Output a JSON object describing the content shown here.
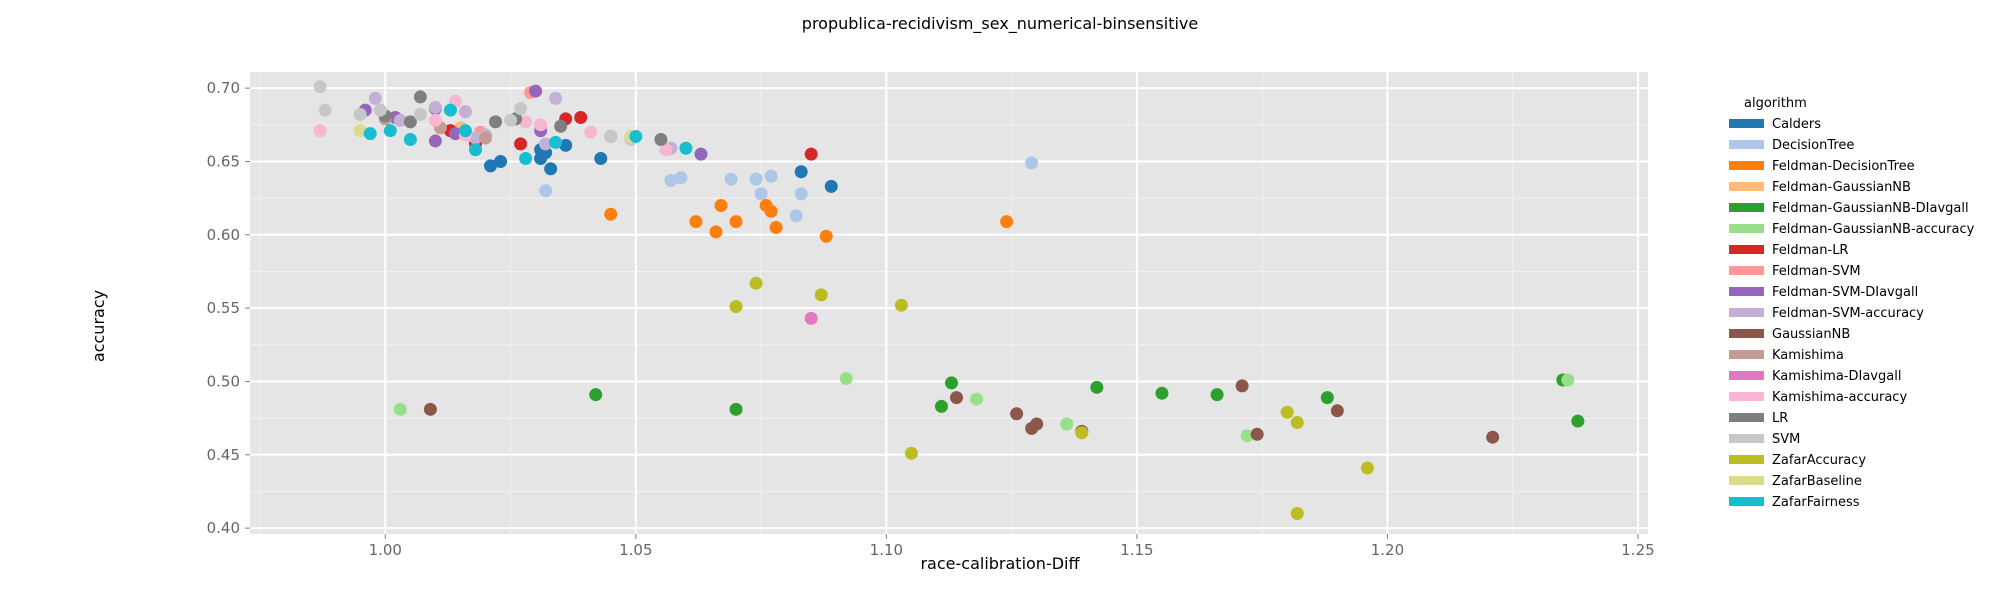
{
  "chart_data": {
    "type": "scatter",
    "title": "propublica-recidivism_sex_numerical-binsensitive",
    "xlabel": "race-calibration-Diff",
    "ylabel": "accuracy",
    "xlim": [
      0.973,
      1.252
    ],
    "ylim": [
      0.396,
      0.711
    ],
    "xticks": [
      1.0,
      1.05,
      1.1,
      1.15,
      1.2,
      1.25
    ],
    "xtick_labels": [
      "1.00",
      "1.05",
      "1.10",
      "1.15",
      "1.20",
      "1.25"
    ],
    "yticks": [
      0.4,
      0.45,
      0.5,
      0.55,
      0.6,
      0.65,
      0.7
    ],
    "ytick_labels": [
      "0.40",
      "0.45",
      "0.50",
      "0.55",
      "0.60",
      "0.65",
      "0.70"
    ],
    "grid": true,
    "legend_title": "algorithm",
    "legend_position": "right",
    "series": [
      {
        "name": "Calders",
        "color": "#1f77b4",
        "points": [
          [
            1.021,
            0.647
          ],
          [
            1.023,
            0.65
          ],
          [
            1.031,
            0.652
          ],
          [
            1.031,
            0.658
          ],
          [
            1.032,
            0.656
          ],
          [
            1.033,
            0.645
          ],
          [
            1.036,
            0.661
          ],
          [
            1.043,
            0.652
          ],
          [
            1.083,
            0.643
          ],
          [
            1.089,
            0.633
          ]
        ]
      },
      {
        "name": "DecisionTree",
        "color": "#aec7e8",
        "points": [
          [
            1.032,
            0.63
          ],
          [
            1.057,
            0.637
          ],
          [
            1.059,
            0.639
          ],
          [
            1.069,
            0.638
          ],
          [
            1.074,
            0.638
          ],
          [
            1.075,
            0.628
          ],
          [
            1.077,
            0.64
          ],
          [
            1.082,
            0.613
          ],
          [
            1.083,
            0.628
          ],
          [
            1.129,
            0.649
          ]
        ]
      },
      {
        "name": "Feldman-DecisionTree",
        "color": "#ff7f0e",
        "points": [
          [
            1.045,
            0.614
          ],
          [
            1.062,
            0.609
          ],
          [
            1.066,
            0.602
          ],
          [
            1.067,
            0.62
          ],
          [
            1.07,
            0.609
          ],
          [
            1.076,
            0.62
          ],
          [
            1.077,
            0.616
          ],
          [
            1.078,
            0.605
          ],
          [
            1.088,
            0.599
          ],
          [
            1.124,
            0.609
          ]
        ]
      },
      {
        "name": "Feldman-GaussianNB",
        "color": "#ffbb78",
        "points": [
          [
            1.013,
            0.671
          ],
          [
            1.015,
            0.673
          ]
        ]
      },
      {
        "name": "Feldman-GaussianNB-DIavgall",
        "color": "#2ca02c",
        "points": [
          [
            1.042,
            0.491
          ],
          [
            1.07,
            0.481
          ],
          [
            1.111,
            0.483
          ],
          [
            1.113,
            0.499
          ],
          [
            1.142,
            0.496
          ],
          [
            1.155,
            0.492
          ],
          [
            1.166,
            0.491
          ],
          [
            1.188,
            0.489
          ],
          [
            1.235,
            0.501
          ],
          [
            1.238,
            0.473
          ]
        ]
      },
      {
        "name": "Feldman-GaussianNB-accuracy",
        "color": "#98df8a",
        "points": [
          [
            1.003,
            0.481
          ],
          [
            1.092,
            0.502
          ],
          [
            1.118,
            0.488
          ],
          [
            1.136,
            0.471
          ],
          [
            1.172,
            0.463
          ],
          [
            1.236,
            0.501
          ]
        ]
      },
      {
        "name": "Feldman-LR",
        "color": "#d62728",
        "points": [
          [
            1.013,
            0.671
          ],
          [
            1.018,
            0.662
          ],
          [
            1.027,
            0.662
          ],
          [
            1.036,
            0.679
          ],
          [
            1.039,
            0.68
          ],
          [
            1.085,
            0.655
          ]
        ]
      },
      {
        "name": "Feldman-SVM",
        "color": "#ff9896",
        "points": [
          [
            1.019,
            0.67
          ],
          [
            1.029,
            0.697
          ],
          [
            1.031,
            0.674
          ]
        ]
      },
      {
        "name": "Feldman-SVM-DIavgall",
        "color": "#9467bd",
        "points": [
          [
            0.996,
            0.685
          ],
          [
            1.002,
            0.68
          ],
          [
            1.01,
            0.686
          ],
          [
            1.01,
            0.664
          ],
          [
            1.014,
            0.669
          ],
          [
            1.03,
            0.698
          ],
          [
            1.031,
            0.671
          ],
          [
            1.063,
            0.655
          ]
        ]
      },
      {
        "name": "Feldman-SVM-accuracy",
        "color": "#c5b0d5",
        "points": [
          [
            0.998,
            0.693
          ],
          [
            1.003,
            0.678
          ],
          [
            1.01,
            0.687
          ],
          [
            1.016,
            0.684
          ],
          [
            1.018,
            0.666
          ],
          [
            1.02,
            0.668
          ],
          [
            1.032,
            0.662
          ],
          [
            1.034,
            0.693
          ],
          [
            1.057,
            0.659
          ]
        ]
      },
      {
        "name": "GaussianNB",
        "color": "#8c564b",
        "points": [
          [
            1.009,
            0.481
          ],
          [
            1.114,
            0.489
          ],
          [
            1.126,
            0.478
          ],
          [
            1.129,
            0.468
          ],
          [
            1.13,
            0.471
          ],
          [
            1.139,
            0.466
          ],
          [
            1.171,
            0.497
          ],
          [
            1.174,
            0.464
          ],
          [
            1.19,
            0.48
          ],
          [
            1.221,
            0.462
          ]
        ]
      },
      {
        "name": "Kamishima",
        "color": "#c49c94",
        "points": [
          [
            1.0,
            0.679
          ],
          [
            1.011,
            0.673
          ],
          [
            1.02,
            0.666
          ]
        ]
      },
      {
        "name": "Kamishima-DIavgall",
        "color": "#e377c2",
        "points": [
          [
            1.085,
            0.543
          ]
        ]
      },
      {
        "name": "Kamishima-accuracy",
        "color": "#f7b6d2",
        "points": [
          [
            0.987,
            0.671
          ],
          [
            1.01,
            0.678
          ],
          [
            1.014,
            0.691
          ],
          [
            1.016,
            0.668
          ],
          [
            1.028,
            0.677
          ],
          [
            1.031,
            0.675
          ],
          [
            1.041,
            0.67
          ],
          [
            1.056,
            0.658
          ]
        ]
      },
      {
        "name": "LR",
        "color": "#7f7f7f",
        "points": [
          [
            1.0,
            0.681
          ],
          [
            1.005,
            0.677
          ],
          [
            1.007,
            0.694
          ],
          [
            1.022,
            0.677
          ],
          [
            1.026,
            0.679
          ],
          [
            1.035,
            0.674
          ],
          [
            1.045,
            0.667
          ],
          [
            1.055,
            0.665
          ]
        ]
      },
      {
        "name": "SVM",
        "color": "#c7c7c7",
        "points": [
          [
            0.987,
            0.701
          ],
          [
            0.988,
            0.685
          ],
          [
            0.995,
            0.682
          ],
          [
            0.999,
            0.685
          ],
          [
            1.007,
            0.682
          ],
          [
            1.025,
            0.678
          ],
          [
            1.027,
            0.686
          ],
          [
            1.045,
            0.667
          ],
          [
            1.049,
            0.665
          ]
        ]
      },
      {
        "name": "ZafarAccuracy",
        "color": "#bcbd22",
        "points": [
          [
            1.07,
            0.551
          ],
          [
            1.074,
            0.567
          ],
          [
            1.087,
            0.559
          ],
          [
            1.103,
            0.552
          ],
          [
            1.105,
            0.451
          ],
          [
            1.139,
            0.465
          ],
          [
            1.18,
            0.479
          ],
          [
            1.182,
            0.472
          ],
          [
            1.182,
            0.41
          ],
          [
            1.196,
            0.441
          ]
        ]
      },
      {
        "name": "ZafarBaseline",
        "color": "#dbdb8d",
        "points": [
          [
            0.995,
            0.671
          ],
          [
            1.049,
            0.667
          ]
        ]
      },
      {
        "name": "ZafarFairness",
        "color": "#17becf",
        "points": [
          [
            0.997,
            0.669
          ],
          [
            1.001,
            0.671
          ],
          [
            1.005,
            0.665
          ],
          [
            1.013,
            0.685
          ],
          [
            1.016,
            0.671
          ],
          [
            1.018,
            0.658
          ],
          [
            1.028,
            0.652
          ],
          [
            1.034,
            0.663
          ],
          [
            1.05,
            0.667
          ],
          [
            1.06,
            0.659
          ]
        ]
      }
    ]
  }
}
